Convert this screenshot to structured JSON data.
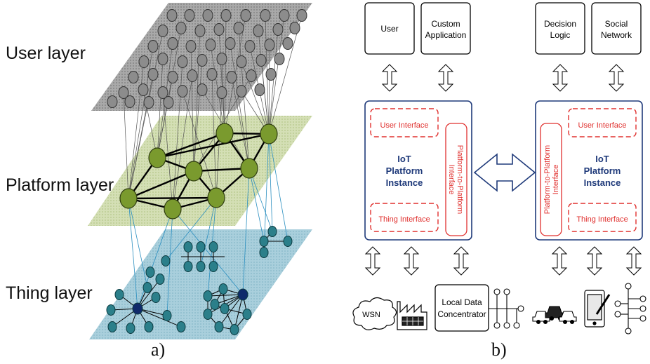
{
  "panel_a": {
    "caption": "a)",
    "user_layer_label": "User layer",
    "platform_layer_label": "Platform layer",
    "thing_layer_label": "Thing layer"
  },
  "panel_b": {
    "caption": "b)",
    "left": {
      "top_boxes": [
        "User",
        "Custom Application"
      ],
      "platform_title": [
        "IoT",
        "Platform",
        "Instance"
      ],
      "user_interface": "User Interface",
      "thing_interface": "Thing Interface",
      "p2p_interface": "Platform-to-Platform Interface"
    },
    "right": {
      "top_boxes": [
        "Decision Logic",
        "Social Network"
      ],
      "platform_title": [
        "IoT",
        "Platform",
        "Instance"
      ],
      "user_interface": "User Interface",
      "thing_interface": "Thing Interface",
      "p2p_interface": "Platform-to-Platform Interface"
    },
    "devices": {
      "wsn": "WSN",
      "concentrator": "Local Data Concentrator"
    }
  },
  "colors": {
    "user_plane": "#9a9a9a",
    "platform_plane": "#cbd9a8",
    "thing_plane": "#9cc7d6",
    "user_node": "#8c8c8c",
    "platform_node": "#7a9a2e",
    "thing_node": "#2b7f8a",
    "thing_hub": "#0f2a6b",
    "platform_box": "#1f3a7a",
    "interface_red": "#e0312f"
  }
}
